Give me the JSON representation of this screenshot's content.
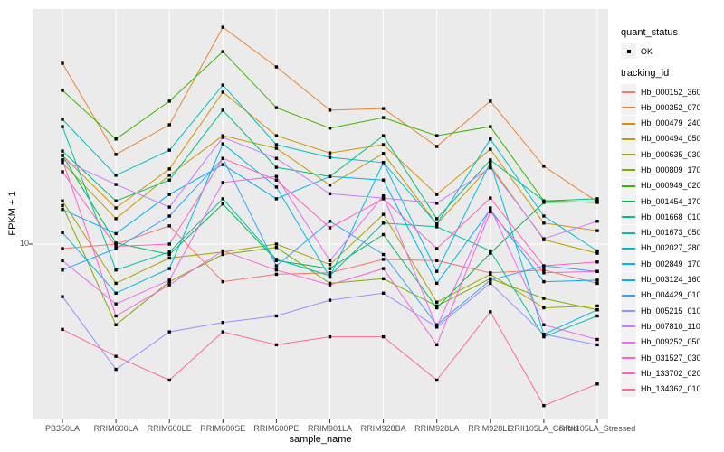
{
  "figure": {
    "x_axis_title": "sample_name",
    "y_axis_title": "FPKM + 1",
    "y_tick_label": "10"
  },
  "legend": {
    "quant_status_title": "quant_status",
    "quant_status_ok_label": "OK",
    "tracking_title": "tracking_id"
  },
  "chart_data": {
    "type": "line",
    "title": "",
    "xlabel": "sample_name",
    "ylabel": "FPKM + 1",
    "y_scale": "log10",
    "y_tick_values": [
      10
    ],
    "ylim_approx": [
      2,
      80
    ],
    "grid": true,
    "panel_bg": "#EBEBEB",
    "grid_color": "#FFFFFF",
    "point_marker": "small-black-square (quant_status OK)",
    "legend_position": "right",
    "categories": [
      "PB350LA",
      "RRIM600LA",
      "RRIM600LE",
      "RRIM600SE",
      "RRIM600PE",
      "RRIM901LA",
      "RRIM928BA",
      "RRIM928LA",
      "RRIM928LE",
      "RRII105LA_Control",
      "RRII105LA_Stressed"
    ],
    "series": [
      {
        "name": "Hb_000152_360",
        "color": "#F8766D",
        "values": [
          9.6,
          10.0,
          11.8,
          7.1,
          7.6,
          7.7,
          8.7,
          8.6,
          7.7,
          7.9,
          7.0
        ]
      },
      {
        "name": "Hb_000352_070",
        "color": "#EA8331",
        "values": [
          51.8,
          22.6,
          29.6,
          71.9,
          50.1,
          33.8,
          34.3,
          24.3,
          36.7,
          20.3,
          14.7
        ]
      },
      {
        "name": "Hb_000479_240",
        "color": "#D89000",
        "values": [
          22.4,
          13.9,
          19.8,
          39.8,
          26.8,
          22.9,
          24.7,
          15.7,
          23.7,
          12.1,
          11.3
        ]
      },
      {
        "name": "Hb_000494_050",
        "color": "#C09B00",
        "values": [
          21.0,
          12.6,
          18.7,
          26.8,
          23.9,
          17.1,
          22.8,
          12.0,
          20.4,
          10.4,
          9.2
        ]
      },
      {
        "name": "Hb_000635_030",
        "color": "#A3A500",
        "values": [
          14.8,
          7.0,
          8.8,
          9.3,
          10.0,
          8.3,
          13.1,
          5.9,
          7.6,
          5.6,
          5.7
        ]
      },
      {
        "name": "Hb_000809_170",
        "color": "#7CAE00",
        "values": [
          14.2,
          4.8,
          7.1,
          9.1,
          9.7,
          7.0,
          7.3,
          5.7,
          7.3,
          6.1,
          5.5
        ]
      },
      {
        "name": "Hb_000949_020",
        "color": "#39B600",
        "values": [
          40.5,
          26.0,
          36.7,
          57.6,
          34.6,
          28.7,
          31.6,
          26.8,
          29.1,
          14.8,
          14.6
        ]
      },
      {
        "name": "Hb_001454_170",
        "color": "#00BB4E",
        "values": [
          22.4,
          10.1,
          9.1,
          14.4,
          8.6,
          8.0,
          10.9,
          5.6,
          9.2,
          14.6,
          14.7
        ]
      },
      {
        "name": "Hb_001668_010",
        "color": "#00BF7D",
        "values": [
          23.3,
          14.8,
          17.9,
          33.8,
          20.1,
          18.5,
          26.8,
          12.6,
          21.5,
          14.8,
          15.1
        ]
      },
      {
        "name": "Hb_001673_050",
        "color": "#00C1A3",
        "values": [
          29.1,
          7.9,
          9.3,
          15.1,
          8.7,
          7.5,
          12.1,
          11.7,
          9.4,
          4.3,
          5.2
        ]
      },
      {
        "name": "Hb_002027_280",
        "color": "#00BFC4",
        "values": [
          31.1,
          18.7,
          23.5,
          42.5,
          24.7,
          22.0,
          21.0,
          12.0,
          26.0,
          12.9,
          9.4
        ]
      },
      {
        "name": "Hb_002849_170",
        "color": "#00BAE0",
        "values": [
          11.1,
          6.4,
          8.0,
          24.9,
          16.8,
          7.4,
          21.0,
          7.8,
          21.0,
          4.4,
          5.5
        ]
      },
      {
        "name": "Hb_003124_160",
        "color": "#00B0F6",
        "values": [
          13.7,
          11.0,
          15.7,
          20.6,
          15.1,
          18.5,
          17.9,
          7.0,
          13.7,
          7.1,
          7.2
        ]
      },
      {
        "name": "Hb_004429_010",
        "color": "#35A2FF",
        "values": [
          7.9,
          9.6,
          12.9,
          21.8,
          8.2,
          12.3,
          9.1,
          4.8,
          7.2,
          8.2,
          7.8
        ]
      },
      {
        "name": "Hb_005215_010",
        "color": "#9590FF",
        "values": [
          6.2,
          3.2,
          4.5,
          4.9,
          5.2,
          6.0,
          6.4,
          4.7,
          7.0,
          4.4,
          4.0
        ]
      },
      {
        "name": "Hb_007810_110",
        "color": "#C77CFF",
        "values": [
          21.5,
          17.2,
          14.0,
          26.4,
          21.8,
          15.8,
          15.2,
          14.5,
          20.0,
          10.5,
          12.3
        ]
      },
      {
        "name": "Hb_009252_050",
        "color": "#E76BF3",
        "values": [
          8.6,
          5.8,
          7.2,
          17.5,
          18.5,
          8.6,
          15.5,
          4.7,
          13.9,
          4.8,
          4.2
        ]
      },
      {
        "name": "Hb_031527_030",
        "color": "#FA62DB",
        "values": [
          21.5,
          5.2,
          6.9,
          9.4,
          7.9,
          6.9,
          8.0,
          4.0,
          13.4,
          7.7,
          7.8
        ]
      },
      {
        "name": "Hb_133702_020",
        "color": "#FF62BC",
        "values": [
          19.3,
          9.8,
          10.0,
          21.8,
          17.9,
          11.6,
          15.1,
          9.6,
          15.2,
          8.2,
          8.5
        ]
      },
      {
        "name": "Hb_134362_010",
        "color": "#FF6A98",
        "values": [
          4.6,
          3.6,
          2.9,
          4.5,
          4.0,
          4.3,
          4.3,
          2.9,
          5.4,
          2.3,
          2.8
        ]
      }
    ],
    "quant_status": {
      "title": "quant_status",
      "items": [
        {
          "label": "OK",
          "marker": "black point"
        }
      ]
    }
  }
}
